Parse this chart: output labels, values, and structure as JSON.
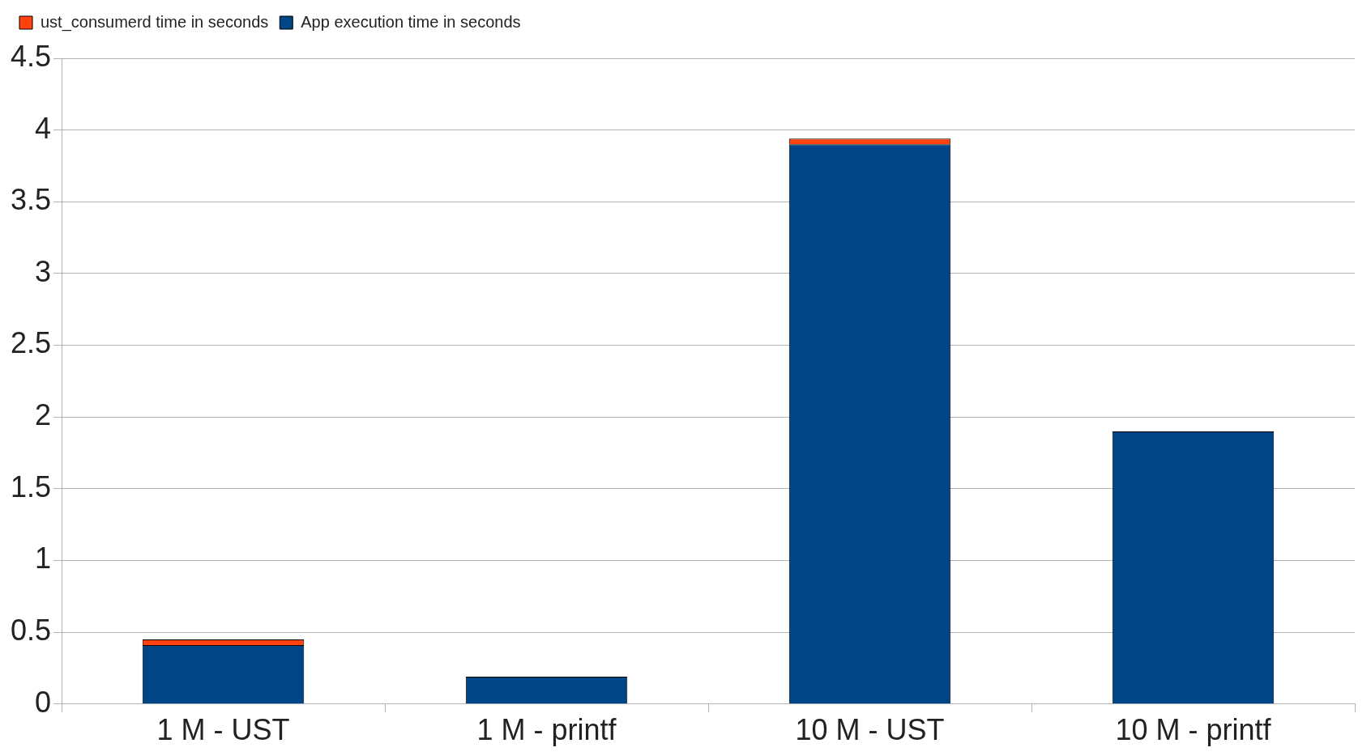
{
  "chart_data": {
    "type": "bar",
    "stacked": true,
    "categories": [
      "1 M - UST",
      "1 M - printf",
      "10 M - UST",
      "10 M - printf"
    ],
    "series": [
      {
        "name": "App execution time in seconds",
        "color": "#004586",
        "values": [
          0.41,
          0.19,
          3.9,
          1.9
        ]
      },
      {
        "name": "ust_consumerd time in seconds",
        "color": "#ff420e",
        "values": [
          0.04,
          null,
          0.04,
          null
        ]
      }
    ],
    "ylim": [
      0,
      4.5
    ],
    "yticks": [
      0,
      0.5,
      1,
      1.5,
      2,
      2.5,
      3,
      3.5,
      4,
      4.5
    ],
    "grid": "y",
    "legend": "top left"
  }
}
